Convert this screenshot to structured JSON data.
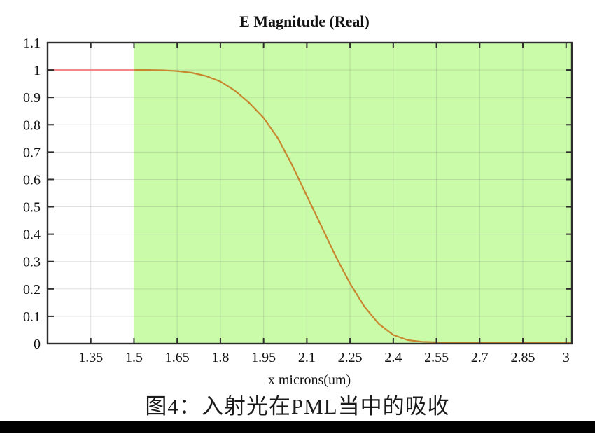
{
  "figure": {
    "caption": "图4：入射光在PML当中的吸收"
  },
  "chart_data": {
    "type": "line",
    "title": "E Magnitude (Real)",
    "xlabel": "x microns(um)",
    "ylabel": "",
    "xlim": [
      1.2,
      3.02
    ],
    "ylim": [
      0,
      1.1
    ],
    "grid": true,
    "x_ticks": [
      1.35,
      1.5,
      1.65,
      1.8,
      1.95,
      2.1,
      2.25,
      2.4,
      2.55,
      2.7,
      2.85,
      3.0
    ],
    "x_tick_labels": [
      "1.35",
      "1.5",
      "1.65",
      "1.8",
      "1.95",
      "2.1",
      "2.25",
      "2.4",
      "2.55",
      "2.7",
      "2.85",
      "3"
    ],
    "y_ticks": [
      0,
      0.1,
      0.2,
      0.3,
      0.4,
      0.5,
      0.6,
      0.7,
      0.8,
      0.9,
      1.0,
      1.1
    ],
    "y_tick_labels": [
      "0",
      "0.1",
      "0.2",
      "0.3",
      "0.4",
      "0.5",
      "0.6",
      "0.7",
      "0.8",
      "0.9",
      "1",
      "1.1"
    ],
    "shaded_region": {
      "x_start": 1.5,
      "x_end": 3.02,
      "color": "#c9fba9"
    },
    "colors": {
      "axis": "#2d2d2d",
      "grid": "rgba(110,110,110,0.22)",
      "tick": "#2d2d2d",
      "text": "#111111"
    },
    "series": [
      {
        "name": "E magnitude",
        "color_over_white": "#f48888",
        "color_over_green": "#c8862e",
        "points": [
          [
            1.2,
            1.0
          ],
          [
            1.3,
            1.0
          ],
          [
            1.4,
            1.0
          ],
          [
            1.5,
            1.0
          ],
          [
            1.55,
            1.0
          ],
          [
            1.6,
            0.999
          ],
          [
            1.65,
            0.996
          ],
          [
            1.7,
            0.99
          ],
          [
            1.75,
            0.978
          ],
          [
            1.8,
            0.958
          ],
          [
            1.85,
            0.925
          ],
          [
            1.9,
            0.88
          ],
          [
            1.95,
            0.825
          ],
          [
            2.0,
            0.75
          ],
          [
            2.05,
            0.65
          ],
          [
            2.1,
            0.54
          ],
          [
            2.15,
            0.43
          ],
          [
            2.2,
            0.32
          ],
          [
            2.25,
            0.22
          ],
          [
            2.3,
            0.135
          ],
          [
            2.35,
            0.072
          ],
          [
            2.4,
            0.032
          ],
          [
            2.45,
            0.013
          ],
          [
            2.5,
            0.007
          ],
          [
            2.55,
            0.005
          ],
          [
            2.6,
            0.004
          ],
          [
            2.7,
            0.004
          ],
          [
            2.85,
            0.004
          ],
          [
            3.0,
            0.004
          ],
          [
            3.02,
            0.004
          ]
        ]
      }
    ]
  }
}
